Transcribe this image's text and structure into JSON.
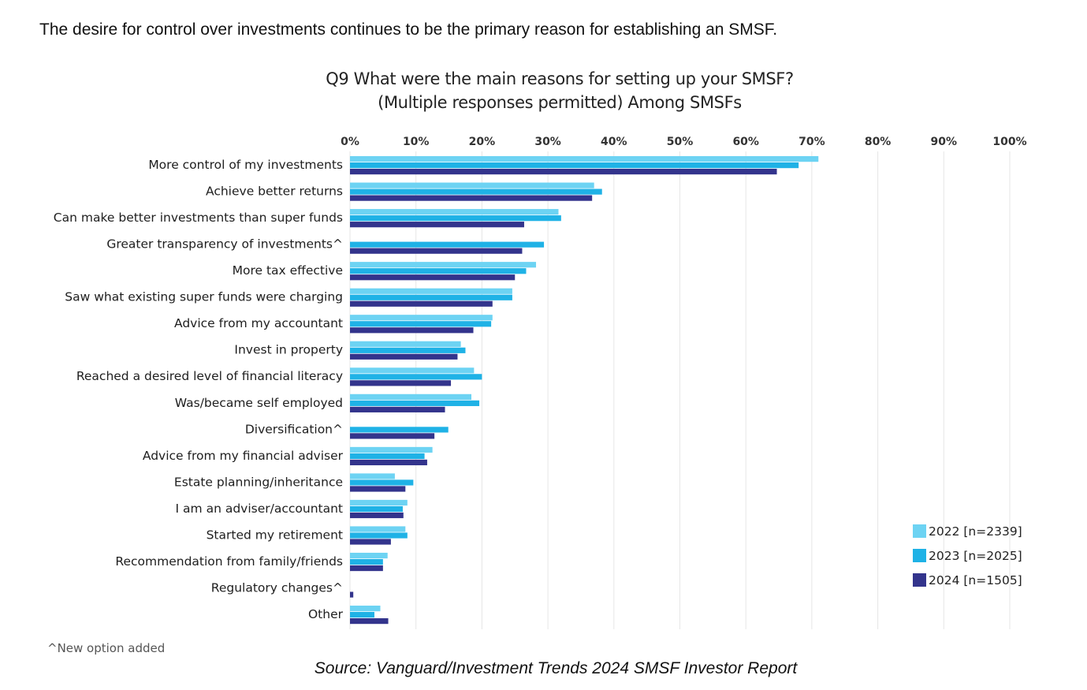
{
  "intro_text": "The desire for control over investments continues to be the primary reason for establishing an SMSF.",
  "footnote": "^New option added",
  "source": "Source: Vanguard/Investment Trends 2024 SMSF Investor Report",
  "chart_data": {
    "type": "bar",
    "orientation": "horizontal",
    "title": "Q9 What were the main reasons for setting up your SMSF?",
    "subtitle": "(Multiple responses permitted) Among SMSFs",
    "xlim": [
      0,
      100
    ],
    "x_ticks": [
      "0%",
      "10%",
      "20%",
      "30%",
      "40%",
      "50%",
      "60%",
      "70%",
      "80%",
      "90%",
      "100%"
    ],
    "grid": true,
    "legend_position": "bottom-right",
    "categories": [
      "More control of my investments",
      "Achieve better returns",
      "Can make better investments than super funds",
      "Greater transparency of investments^",
      "More tax effective",
      "Saw what existing super funds were charging",
      "Advice from my accountant",
      "Invest in property",
      "Reached a desired level of financial literacy",
      "Was/became self employed",
      "Diversification^",
      "Advice from my financial adviser",
      "Estate planning/inheritance",
      "I am an adviser/accountant",
      "Started my retirement",
      "Recommendation from family/friends",
      "Regulatory changes^",
      "Other"
    ],
    "series": [
      {
        "name": "2022 [n=2339]",
        "color": "#6dd3f3",
        "values": [
          71,
          37,
          31.6,
          null,
          28.2,
          24.6,
          21.6,
          16.8,
          18.8,
          18.4,
          null,
          12.5,
          6.8,
          8.7,
          8.4,
          5.7,
          null,
          4.6
        ]
      },
      {
        "name": "2023 [n=2025]",
        "color": "#1fb2e6",
        "values": [
          68,
          38.2,
          32,
          29.4,
          26.7,
          24.6,
          21.4,
          17.5,
          20,
          19.6,
          14.9,
          11.3,
          9.6,
          8,
          8.7,
          5,
          null,
          3.7
        ]
      },
      {
        "name": "2024 [n=1505]",
        "color": "#33348c",
        "values": [
          64.7,
          36.7,
          26.4,
          26.1,
          25,
          21.6,
          18.7,
          16.3,
          15.3,
          14.4,
          12.8,
          11.7,
          8.4,
          8.1,
          6.2,
          5,
          0.5,
          5.8
        ]
      }
    ]
  }
}
